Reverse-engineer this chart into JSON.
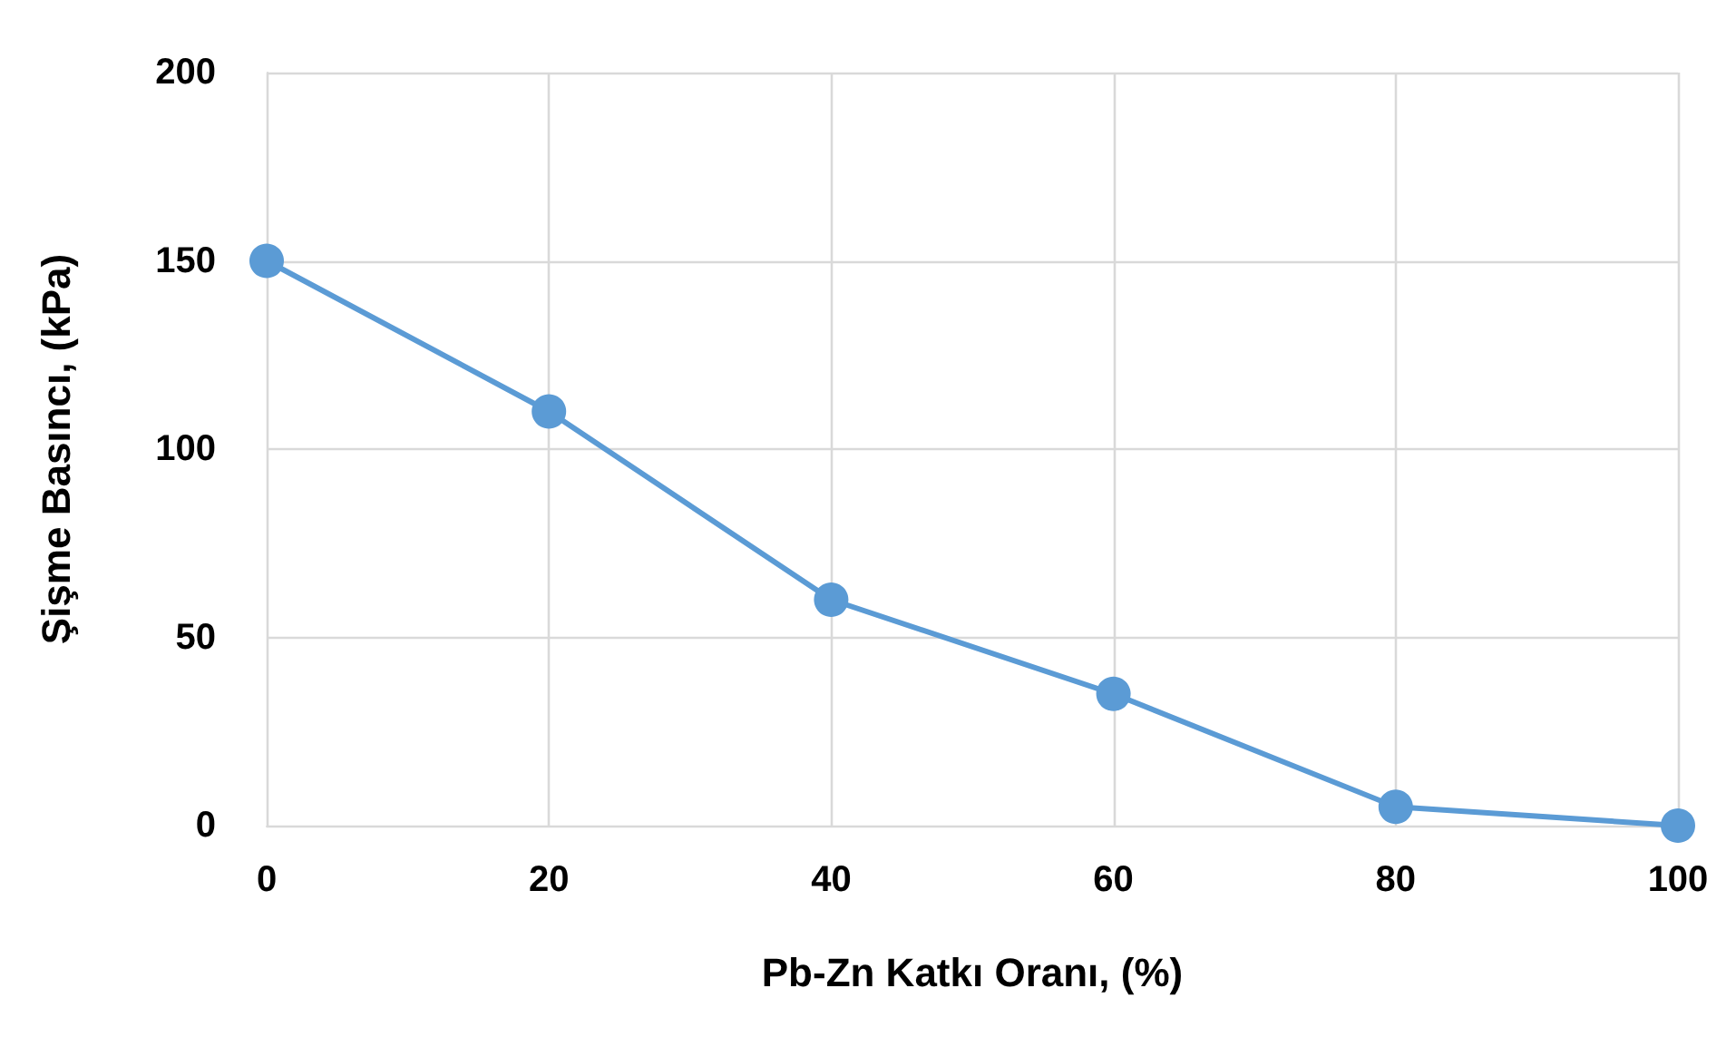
{
  "chart_data": {
    "type": "line",
    "xlabel": "Pb-Zn Katkı Oranı, (%)",
    "ylabel": "Şişme Basıncı, (kPa)",
    "x": [
      0,
      20,
      40,
      60,
      80,
      100
    ],
    "series": [
      {
        "color": "#5b9bd5",
        "values": [
          150,
          110,
          60,
          35,
          5,
          0
        ]
      }
    ],
    "xlim": [
      0,
      100
    ],
    "xticks": [
      0,
      20,
      40,
      60,
      80,
      100
    ],
    "ylim": [
      0,
      200
    ],
    "yticks": [
      0,
      50,
      100,
      150,
      200
    ],
    "grid": true,
    "marker": "circle",
    "line_style": "solid"
  }
}
